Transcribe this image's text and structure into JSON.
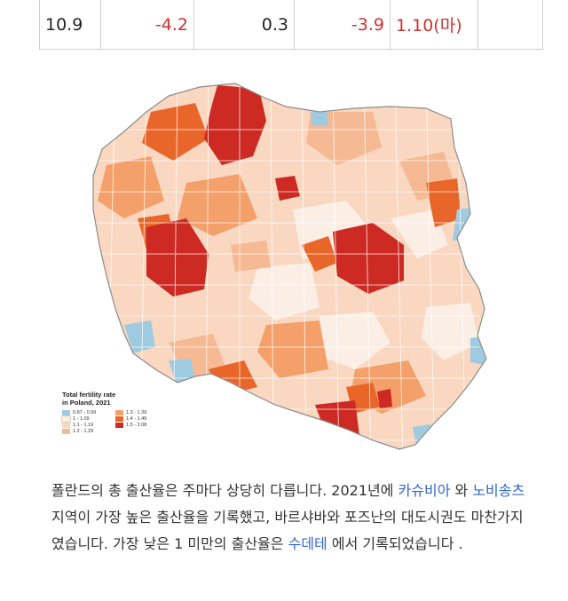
{
  "stats_row": {
    "c1": "10.9",
    "c2": "-4.2",
    "c3": "0.3",
    "c4": "-3.9",
    "c5": "1.10(마)",
    "c6": ""
  },
  "map": {
    "title_line1": "Total fertility rate",
    "title_line2": "in Poland, 2021",
    "legend": [
      {
        "label": "0.87 - 0.99",
        "color": "#9fcbe0"
      },
      {
        "label": "1.3 - 1.39",
        "color": "#f3a06a"
      },
      {
        "label": "1 - 1.09",
        "color": "#fbeee4"
      },
      {
        "label": "1.4 - 1.49",
        "color": "#e9662a"
      },
      {
        "label": "1.1 - 1.19",
        "color": "#f9d7c0"
      },
      {
        "label": "1.5 - 2.08",
        "color": "#cc2a22"
      },
      {
        "label": "1.2 - 1.29",
        "color": "#f5b994"
      },
      {
        "label": "",
        "color": ""
      }
    ]
  },
  "caption": {
    "t1": "폴란드의 총 출산율은 주마다 상당히 다릅니다. 2021년에 ",
    "link1": "카슈비아",
    "t2": " 와 ",
    "link2": "노비송츠",
    "t3": " 지역이 가장 높은 출산율을 기록했고, 바르샤바와 포즈난의 대도시권도 마찬가지였습니다. 가장 낮은 1 미만의 출산율은 ",
    "link3": "수데테",
    "t4": " 에서 기록되었습니다 ."
  }
}
